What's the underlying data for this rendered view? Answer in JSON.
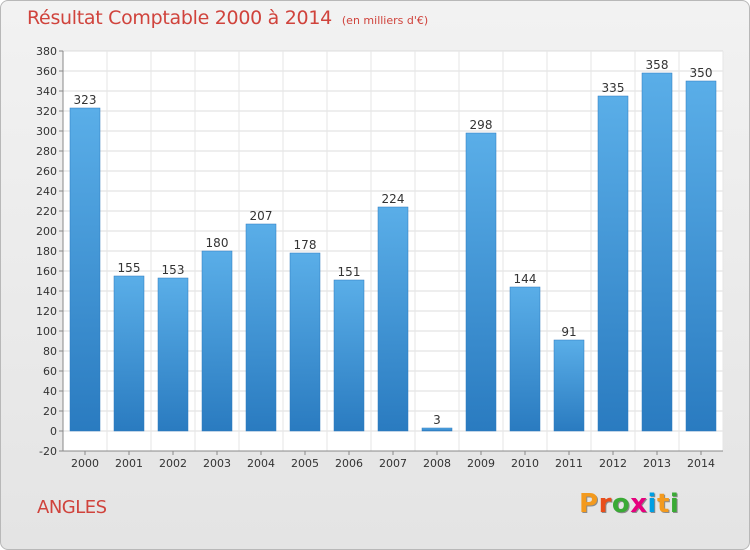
{
  "header": {
    "title": "Résultat Comptable 2000 à 2014",
    "subtitle": "(en milliers d'€)"
  },
  "footer": {
    "commune": "ANGLES",
    "logo_text": "Proxiti",
    "logo_colors": [
      "#f39a1e",
      "#e94e1b",
      "#3aaa35",
      "#e6007e",
      "#009fe3",
      "#f39a1e",
      "#3aaa35"
    ]
  },
  "colors": {
    "title": "#d0433c",
    "bar_top": "#5aaee8",
    "bar_bottom": "#2a7bc0"
  },
  "chart_data": {
    "type": "bar",
    "categories": [
      "2000",
      "2001",
      "2002",
      "2003",
      "2004",
      "2005",
      "2006",
      "2007",
      "2008",
      "2009",
      "2010",
      "2011",
      "2012",
      "2013",
      "2014"
    ],
    "values": [
      323,
      155,
      153,
      180,
      207,
      178,
      151,
      224,
      3,
      298,
      144,
      91,
      335,
      358,
      350
    ],
    "ylim": [
      -20,
      380
    ],
    "ytick_step": 20,
    "grid": true,
    "title": "Résultat Comptable 2000 à 2014",
    "xlabel": "",
    "ylabel": ""
  }
}
